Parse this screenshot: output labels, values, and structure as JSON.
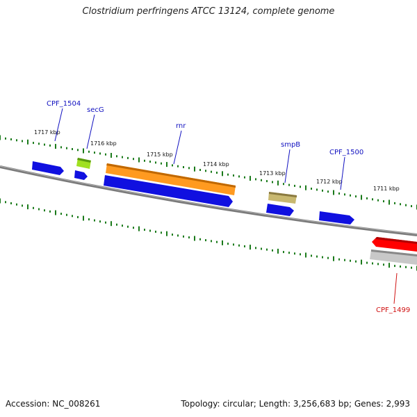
{
  "title": "Clostridium perfringens ATCC 13124, complete genome",
  "footer": {
    "accession": "Accession: NC_008261",
    "topology": "Topology: circular; Length: 3,256,683 bp; Genes: 2,993"
  },
  "colors": {
    "background": "#ffffff",
    "backbone": "#808080",
    "tick": "#1a7a1a",
    "forward_cds": "#1010e0",
    "reverse_cds": "#ff0000",
    "rrna": "#ff9010",
    "trna": "#a0e020",
    "tmrna": "#c8b870",
    "pseudo": "#c8c8c8",
    "label_forward": "#1010c0",
    "label_reverse": "#d01010"
  },
  "scale": {
    "unit": "kbp",
    "labels": [
      "1717 kbp",
      "1716 kbp",
      "1715 kbp",
      "1714 kbp",
      "1713 kbp",
      "1712 kbp",
      "1711 kbp"
    ]
  },
  "gene_labels": [
    {
      "text": "CPF_1504",
      "strand": "forward"
    },
    {
      "text": "secG",
      "strand": "forward"
    },
    {
      "text": "rnr",
      "strand": "forward"
    },
    {
      "text": "smpB",
      "strand": "forward"
    },
    {
      "text": "CPF_1500",
      "strand": "forward"
    },
    {
      "text": "CPF_1499",
      "strand": "reverse"
    }
  ]
}
